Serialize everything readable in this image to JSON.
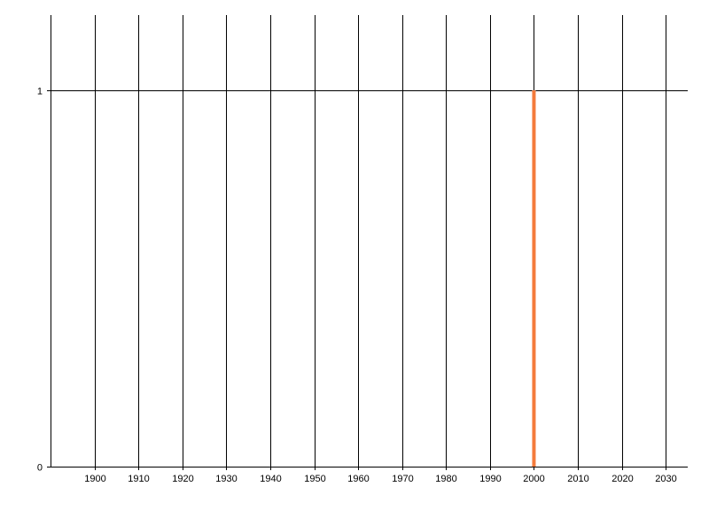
{
  "chart_data": {
    "type": "bar",
    "title": "",
    "xlabel": "",
    "ylabel": "",
    "x_ticks": [
      1900,
      1910,
      1920,
      1930,
      1940,
      1950,
      1960,
      1970,
      1980,
      1990,
      2000,
      2010,
      2020,
      2030
    ],
    "y_ticks": [
      0,
      1
    ],
    "xlim": [
      1890,
      2035
    ],
    "ylim": [
      0,
      1.2
    ],
    "grid": {
      "vertical": true,
      "horizontal": true
    },
    "legend": "none",
    "series": [
      {
        "x": [
          2000
        ],
        "values": [
          1
        ],
        "color": "#F47B3C"
      }
    ],
    "colors": {
      "grid": "#000000",
      "axis": "#000000"
    }
  }
}
